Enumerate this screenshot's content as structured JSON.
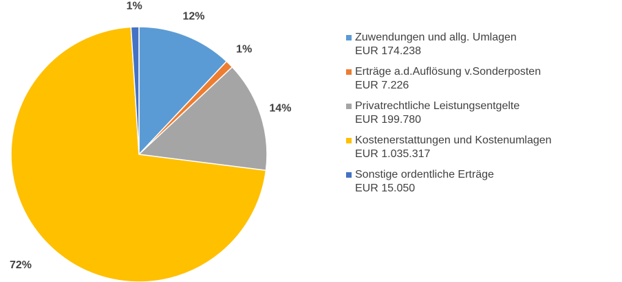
{
  "chart_data": {
    "type": "pie",
    "categories": [
      "Zuwendungen und allg. Umlagen",
      "Erträge a.d.Auflösung v.Sonderposten",
      "Privatrechtliche Leistungsentgelte",
      "Kostenerstattungen und Kostenumlagen",
      "Sonstige ordentliche Erträge"
    ],
    "legend_amounts": [
      "EUR 174.238",
      "EUR 7.226",
      "EUR 199.780",
      "EUR 1.035.317",
      "EUR 15.050"
    ],
    "values": [
      12,
      1,
      14,
      72,
      1
    ],
    "value_labels": [
      "12%",
      "1%",
      "14%",
      "72%",
      "1%"
    ],
    "colors": [
      "#5b9bd5",
      "#ed7d31",
      "#a5a5a5",
      "#ffc000",
      "#4472c4"
    ],
    "legend": "right"
  }
}
